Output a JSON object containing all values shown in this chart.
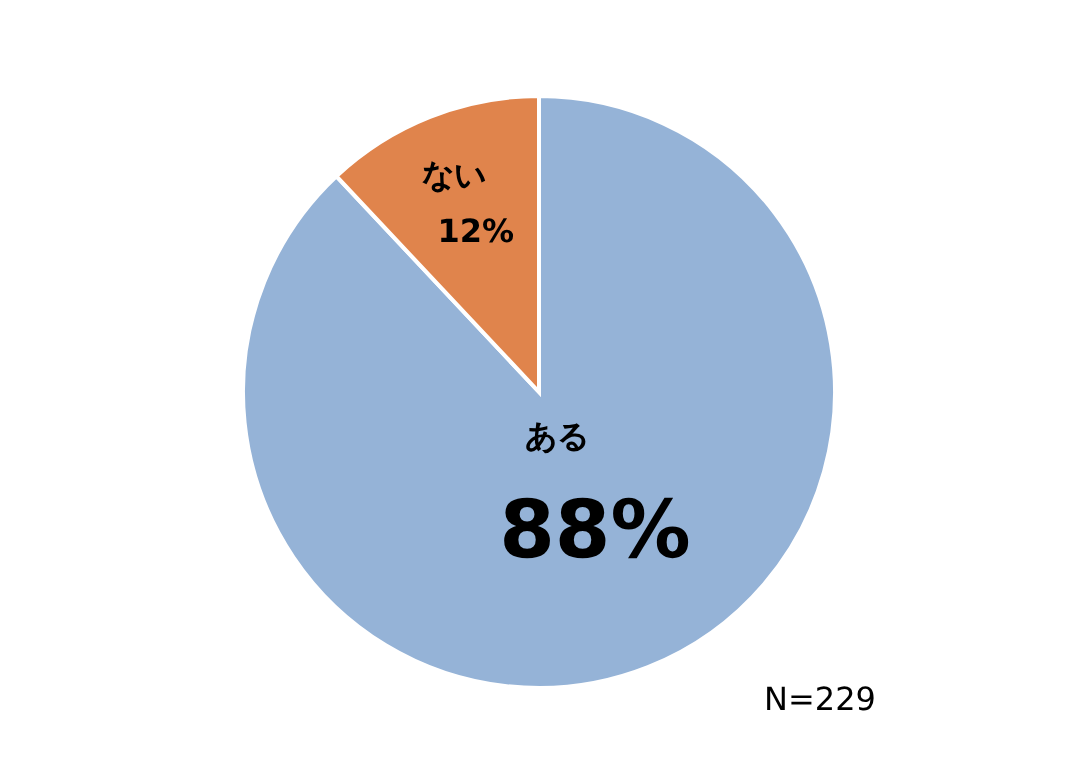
{
  "chart_data": {
    "type": "pie",
    "categories": [
      "ある",
      "ない"
    ],
    "values": [
      88,
      12
    ],
    "colors": [
      "#95b3d7",
      "#e0844c"
    ],
    "value_labels": [
      "88%",
      "12%"
    ],
    "annotations": [
      "N=229"
    ]
  }
}
